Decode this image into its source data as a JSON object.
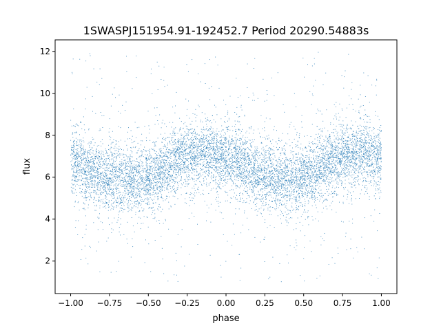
{
  "chart_data": {
    "type": "scatter",
    "title": "1SWASPJ151954.91-192452.7 Period 20290.54883s",
    "xlabel": "phase",
    "ylabel": "flux",
    "xlim": [
      -1.1,
      1.1
    ],
    "ylim": [
      0.45,
      12.55
    ],
    "x_ticks": [
      -1.0,
      -0.75,
      -0.5,
      -0.25,
      0.0,
      0.25,
      0.5,
      0.75,
      1.0
    ],
    "x_tick_labels": [
      "−1.00",
      "−0.75",
      "−0.50",
      "−0.25",
      "0.00",
      "0.25",
      "0.50",
      "0.75",
      "1.00"
    ],
    "y_ticks": [
      2,
      4,
      6,
      8,
      10,
      12
    ],
    "y_tick_labels": [
      "2",
      "4",
      "6",
      "8",
      "10",
      "12"
    ],
    "grid": false,
    "legend": "none",
    "marker_color": "#1f77b4",
    "x_range": [
      -1.0,
      1.0
    ],
    "flux_range": [
      1.0,
      12.0
    ],
    "profile": [
      {
        "phase": -1.0,
        "flux": 6.7
      },
      {
        "phase": -0.75,
        "flux": 6.0
      },
      {
        "phase": -0.6,
        "flux": 5.9
      },
      {
        "phase": -0.5,
        "flux": 6.0
      },
      {
        "phase": -0.25,
        "flux": 7.0
      },
      {
        "phase": -0.15,
        "flux": 7.2
      },
      {
        "phase": 0.0,
        "flux": 6.9
      },
      {
        "phase": 0.25,
        "flux": 6.1
      },
      {
        "phase": 0.4,
        "flux": 5.9
      },
      {
        "phase": 0.5,
        "flux": 6.0
      },
      {
        "phase": 0.75,
        "flux": 7.0
      },
      {
        "phase": 0.85,
        "flux": 7.2
      },
      {
        "phase": 1.0,
        "flux": 6.9
      }
    ]
  }
}
